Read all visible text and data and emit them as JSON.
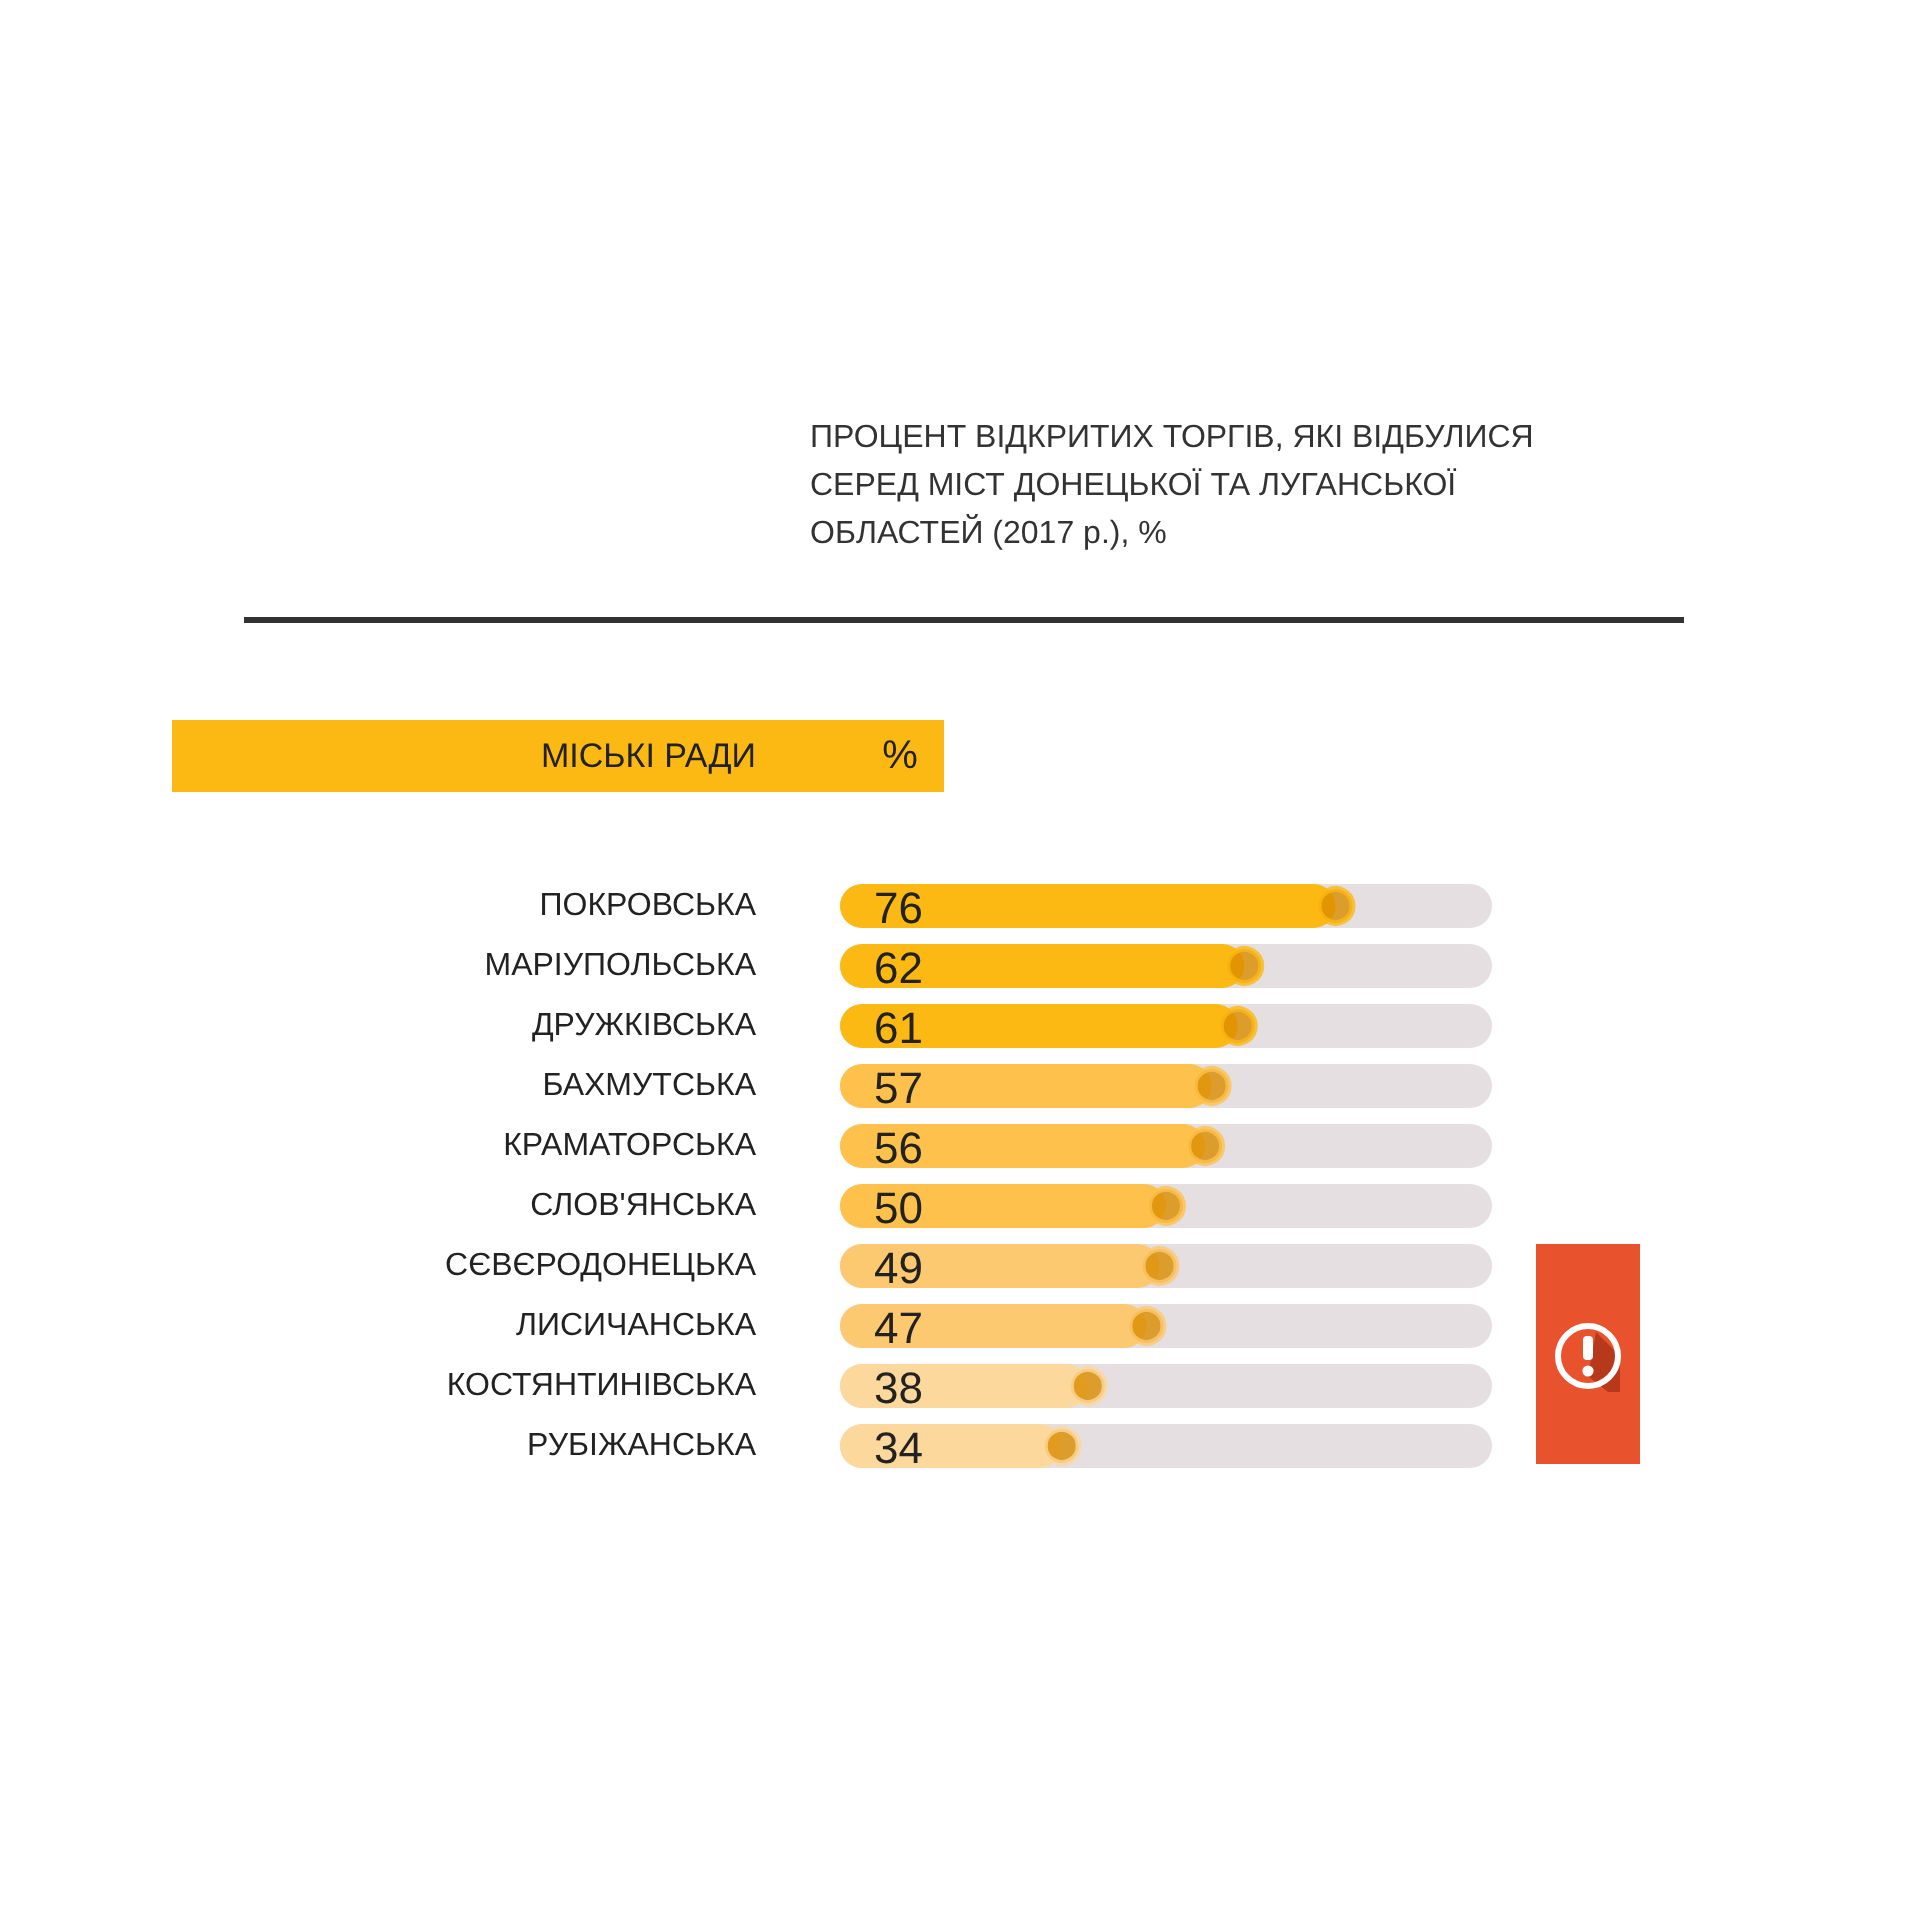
{
  "chart_data": {
    "type": "bar",
    "orientation": "horizontal",
    "title": "ПРОЦЕНТ ВІДКРИТИХ ТОРГІВ, ЯКІ ВІДБУЛИСЯ СЕРЕД МІСТ ДОНЕЦЬКОЇ ТА ЛУГАНСЬКОЇ ОБЛАСТЕЙ (2017 р.), %",
    "ylabel": "МІСЬКІ РАДИ",
    "xlabel": "%",
    "categories": [
      "ПОКРОВСЬКА",
      "МАРІУПОЛЬСЬКА",
      "ДРУЖКІВСЬКА",
      "БАХМУТСЬКА",
      "КРАМАТОРСЬКА",
      "СЛОВ'ЯНСЬКА",
      "СЄВЄРОДОНЕЦЬКА",
      "ЛИСИЧАНСЬКА",
      "КОСТЯНТИНІВСЬКА",
      "РУБІЖАНСЬКА"
    ],
    "series": [
      {
        "type": "bar",
        "values": [
          76,
          62,
          61,
          57,
          56,
          50,
          49,
          47,
          38,
          34
        ],
        "value_labels": [
          "76",
          "62",
          "61",
          "57",
          "56",
          "50",
          "49",
          "47",
          "38",
          "34"
        ],
        "colors": [
          "#fdb913",
          "#fdb913",
          "#fdb913",
          "#fec24c",
          "#fec24c",
          "#fec24c",
          "#fdc970",
          "#fdc970",
          "#fcd89c",
          "#fcd89c"
        ]
      },
      {
        "type": "scatter",
        "values": [
          76,
          62,
          61,
          57,
          56,
          50,
          49,
          47,
          38,
          34
        ],
        "color": "#d98c00"
      }
    ],
    "xlim": [
      0,
      100
    ],
    "marker": "circle",
    "tick_labels": "y"
  }
}
